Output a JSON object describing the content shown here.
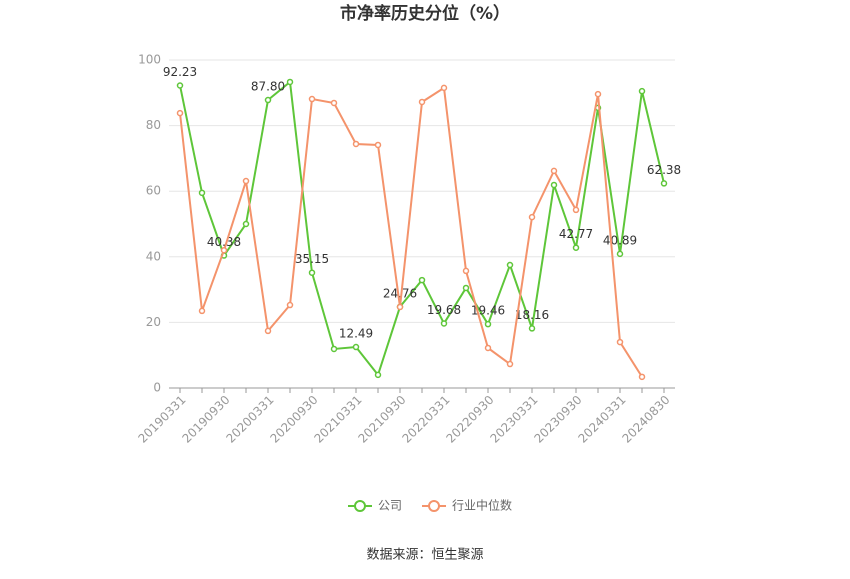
{
  "chart_data": {
    "type": "line",
    "title": "市净率历史分位（%）",
    "categories": [
      "20190331",
      null,
      "20190930",
      null,
      "20200331",
      null,
      "20200930",
      null,
      "20210331",
      null,
      "20210930",
      null,
      "20220331",
      null,
      "20220930",
      null,
      "20230331",
      null,
      "20230930",
      null,
      "20240331",
      null,
      "20240830"
    ],
    "series": [
      {
        "name": "公司",
        "color": "#5ec639",
        "values": [
          92.23,
          59.5,
          40.38,
          50,
          87.8,
          93.3,
          35.15,
          11.9,
          12.49,
          4,
          24.76,
          32.9,
          19.68,
          30.5,
          19.46,
          37.5,
          18.16,
          61.9,
          42.77,
          85.4,
          40.89,
          90.5,
          62.38
        ],
        "value_labels": [
          "92.23",
          null,
          "40.38",
          null,
          "87.80",
          null,
          "35.15",
          null,
          "12.49",
          null,
          "24.76",
          null,
          "19.68",
          null,
          "19.46",
          null,
          "18.16",
          null,
          "42.77",
          null,
          "40.89",
          null,
          "62.38"
        ]
      },
      {
        "name": "行业中位数",
        "color": "#f4936b",
        "values": [
          83.8,
          23.5,
          42,
          63.1,
          17.4,
          25.3,
          88.1,
          86.9,
          74.4,
          74.1,
          24.7,
          87.2,
          91.5,
          35.7,
          12.2,
          7.3,
          52.1,
          66.2,
          54.3,
          89.6,
          14,
          3.4,
          null
        ]
      }
    ],
    "ylim": [
      0,
      100
    ],
    "yticks": [
      0,
      20,
      40,
      60,
      80,
      100
    ],
    "grid": true,
    "legend": "bottom",
    "source": "数据来源：恒生聚源"
  }
}
